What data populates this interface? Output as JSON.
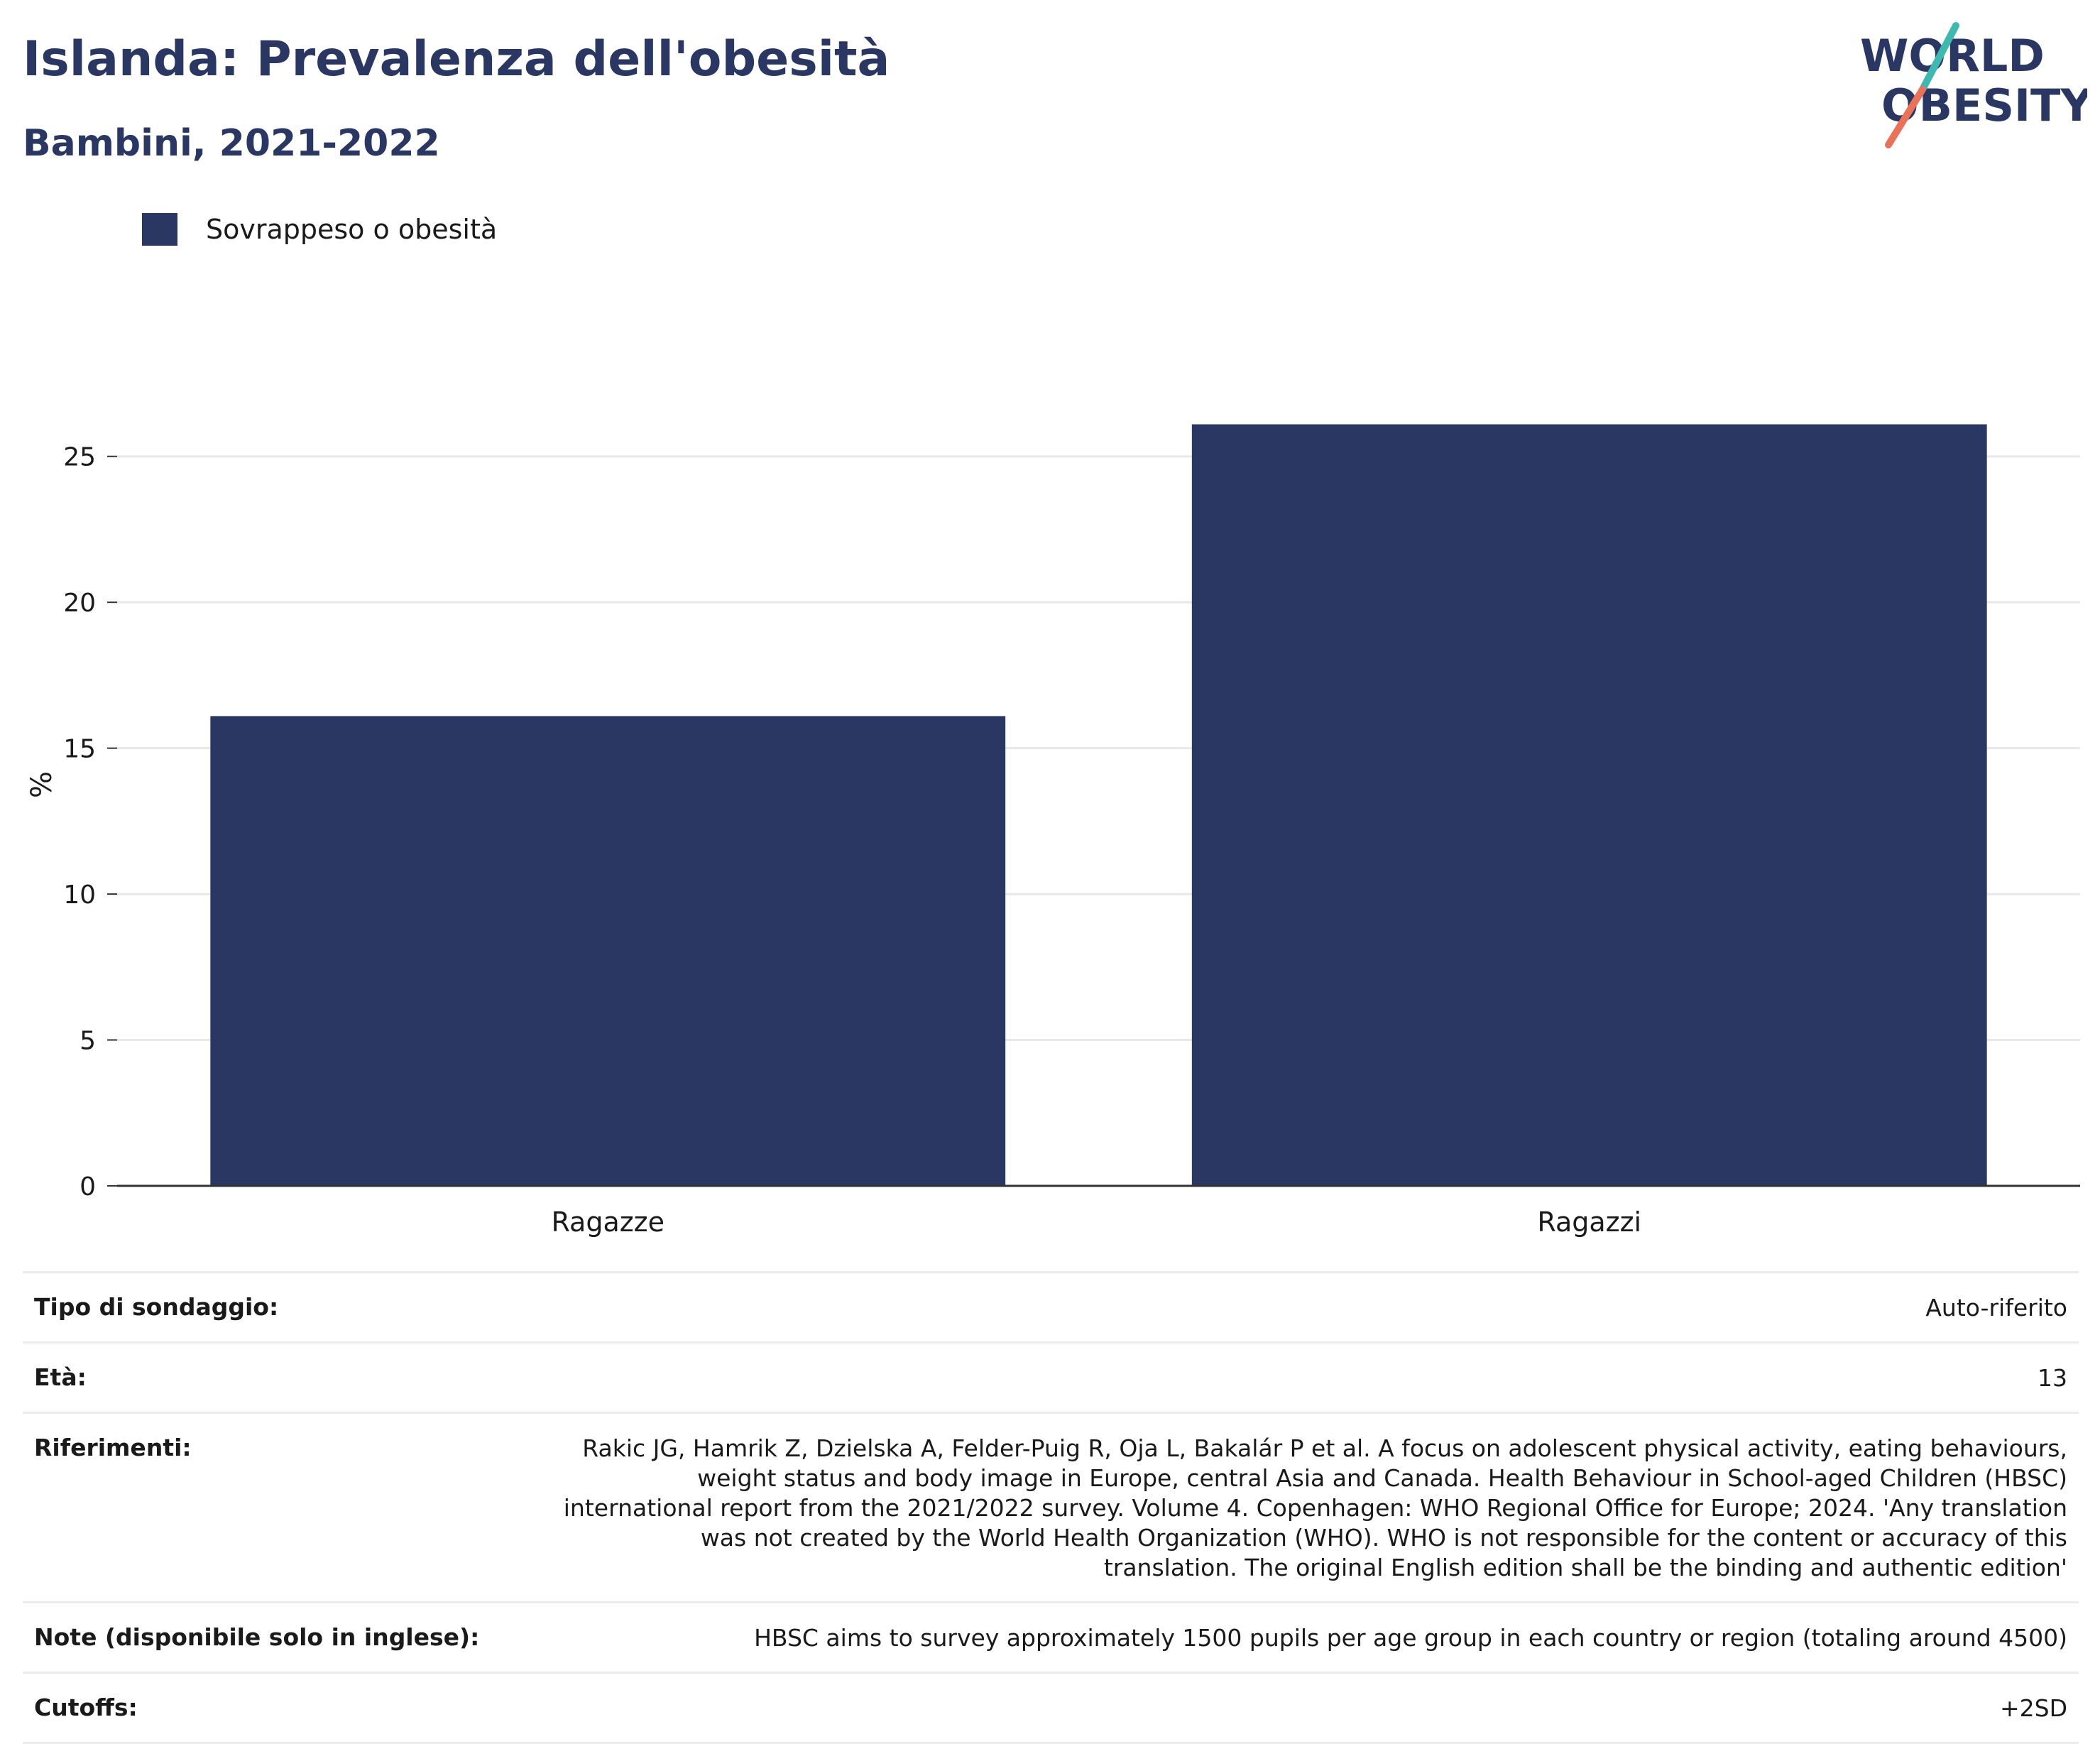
{
  "header": {
    "title": "Islanda: Prevalenza dell'obesità",
    "subtitle": "Bambini, 2021-2022"
  },
  "logo": {
    "line1": "WORLD",
    "line2": "OBESITY",
    "colors": {
      "text": "#2b3763",
      "slash_top": "#3fb8b0",
      "slash_bottom": "#e8735a"
    }
  },
  "legend": {
    "label": "Sovrappeso o obesità",
    "color": "#2b3763"
  },
  "chart_data": {
    "type": "bar",
    "categories": [
      "Ragazze",
      "Ragazzi"
    ],
    "series": [
      {
        "name": "Sovrappeso o obesità",
        "values": [
          16.1,
          26.1
        ],
        "color": "#2b3763"
      }
    ],
    "ylabel": "%",
    "xlabel": "",
    "ylim": [
      0,
      27.5
    ],
    "yticks": [
      0,
      5,
      10,
      15,
      20,
      25
    ],
    "grid": true,
    "legend_position": "top-left"
  },
  "meta": {
    "rows": [
      {
        "key": "Tipo di sondaggio:",
        "value": "Auto-riferito"
      },
      {
        "key": "Età:",
        "value": "13"
      },
      {
        "key": "Riferimenti:",
        "value": "Rakic JG, Hamrik Z, Dzielska A, Felder-Puig R, Oja L, Bakalár P et al. A focus on adolescent physical activity, eating behaviours, weight status and body image in Europe, central Asia and Canada. Health Behaviour in School-aged Children (HBSC) international report from the 2021/2022 survey. Volume 4. Copenhagen: WHO Regional Office for Europe; 2024. 'Any translation was not created by the World Health Organization (WHO). WHO is not responsible for the content or accuracy of this translation. The original English edition shall be the binding and authentic edition'"
      },
      {
        "key": "Note (disponibile solo in inglese):",
        "value": "HBSC aims to survey approximately 1500 pupils per age group in each country or region (totaling around 4500)"
      },
      {
        "key": "Cutoffs:",
        "value": "+2SD"
      }
    ]
  }
}
